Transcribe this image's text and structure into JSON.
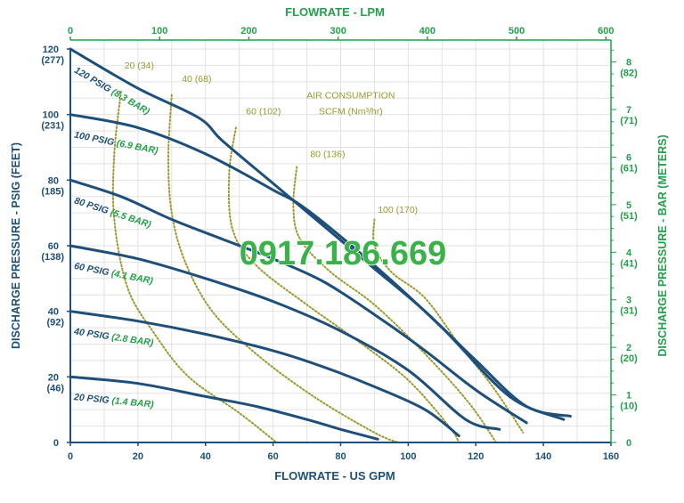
{
  "chart_data": {
    "type": "line",
    "colors": {
      "navy": "#1d4f7a",
      "green": "#22a04a",
      "olive": "#9a9a2c",
      "grid": "#e2e2e2",
      "watermark": "#3bb249"
    },
    "grid": true,
    "x_bottom": {
      "label": "FLOWRATE - US GPM",
      "range": [
        0,
        160
      ],
      "ticks": [
        0,
        20,
        40,
        60,
        80,
        100,
        120,
        140,
        160
      ],
      "tick_labels": [
        "0",
        "20",
        "40",
        "60",
        "80",
        "100",
        "120",
        "140",
        "160"
      ]
    },
    "x_top": {
      "label": "FLOWRATE - LPM",
      "ticks": [
        0,
        100,
        200,
        300,
        400,
        500,
        600
      ],
      "tick_labels": [
        "0",
        "100",
        "200",
        "300",
        "400",
        "500",
        "600"
      ]
    },
    "y_left": {
      "label": "DISCHARGE PRESSURE - PSIG (FEET)",
      "range": [
        0,
        120
      ],
      "ticks": [
        {
          "value": 120,
          "label": "120",
          "sub": "(277)"
        },
        {
          "value": 100,
          "label": "100",
          "sub": "(231)"
        },
        {
          "value": 80,
          "label": "80",
          "sub": "(185)"
        },
        {
          "value": 60,
          "label": "60",
          "sub": "(138)"
        },
        {
          "value": 40,
          "label": "40",
          "sub": "(92)"
        },
        {
          "value": 20,
          "label": "20",
          "sub": "(46)"
        },
        {
          "value": 0,
          "label": "0",
          "sub": ""
        }
      ]
    },
    "y_right": {
      "label": "DISCHARGE PRESSURE - BAR (METERS)",
      "ticks": [
        {
          "value": 8,
          "label": "8",
          "sub": "(82)"
        },
        {
          "value": 7,
          "label": "7",
          "sub": "(71)"
        },
        {
          "value": 6,
          "label": "6",
          "sub": "(61)"
        },
        {
          "value": 5,
          "label": "5",
          "sub": "(51)"
        },
        {
          "value": 4,
          "label": "4",
          "sub": "(41)"
        },
        {
          "value": 3,
          "label": "3",
          "sub": "(31)"
        },
        {
          "value": 2,
          "label": "2",
          "sub": "(20)"
        },
        {
          "value": 1,
          "label": "1",
          "sub": "(10)"
        },
        {
          "value": 0,
          "label": "0",
          "sub": ""
        }
      ]
    },
    "series": [
      {
        "name": "120 PSIG (8.3 BAR)",
        "label_at": [
          1,
          113
        ],
        "points": [
          [
            0,
            120
          ],
          [
            20,
            108
          ],
          [
            38,
            99
          ],
          [
            45,
            92
          ],
          [
            60,
            79
          ],
          [
            75,
            66
          ],
          [
            90,
            53
          ],
          [
            105,
            40
          ],
          [
            120,
            25
          ],
          [
            135,
            11
          ],
          [
            148,
            8
          ]
        ]
      },
      {
        "name": "100 PSIG (6.9 BAR)",
        "label_at": [
          1,
          93
        ],
        "points": [
          [
            0,
            100
          ],
          [
            20,
            96
          ],
          [
            40,
            88
          ],
          [
            60,
            77
          ],
          [
            70,
            71
          ],
          [
            90,
            54
          ],
          [
            110,
            35
          ],
          [
            130,
            14
          ],
          [
            146,
            7
          ]
        ]
      },
      {
        "name": "80 PSIG (5.5 BAR)",
        "label_at": [
          1,
          73
        ],
        "points": [
          [
            0,
            80
          ],
          [
            15,
            75
          ],
          [
            30,
            68
          ],
          [
            45,
            62
          ],
          [
            60,
            56
          ],
          [
            75,
            49
          ],
          [
            90,
            39
          ],
          [
            105,
            28
          ],
          [
            120,
            16
          ],
          [
            135,
            6
          ]
        ]
      },
      {
        "name": "60 PSIG (4.1 BAR)",
        "label_at": [
          1,
          53
        ],
        "points": [
          [
            0,
            60
          ],
          [
            20,
            56
          ],
          [
            40,
            50
          ],
          [
            60,
            43
          ],
          [
            80,
            34
          ],
          [
            100,
            22
          ],
          [
            117,
            7
          ],
          [
            127,
            4
          ]
        ]
      },
      {
        "name": "40 PSIG (2.8 BAR)",
        "label_at": [
          1,
          33
        ],
        "points": [
          [
            0,
            40
          ],
          [
            20,
            37
          ],
          [
            40,
            33
          ],
          [
            60,
            28
          ],
          [
            75,
            23
          ],
          [
            90,
            17
          ],
          [
            105,
            10
          ],
          [
            115,
            2
          ]
        ]
      },
      {
        "name": "20 PSIG (1.4 BAR)",
        "label_at": [
          1,
          13
        ],
        "points": [
          [
            0,
            20
          ],
          [
            20,
            18
          ],
          [
            40,
            14
          ],
          [
            55,
            11
          ],
          [
            70,
            7
          ],
          [
            80,
            4
          ],
          [
            91,
            1
          ]
        ]
      }
    ],
    "air_consumption": {
      "title": "AIR CONSUMPTION",
      "subtitle": "SCFM (Nm³/hr)",
      "title_at": [
        83,
        105
      ],
      "subtitle_at": [
        83,
        100
      ],
      "lines": [
        {
          "label": "20 (34)",
          "label_at": [
            16,
            114
          ],
          "points": [
            [
              15,
              107
            ],
            [
              13,
              88
            ],
            [
              13,
              68
            ],
            [
              17,
              47
            ],
            [
              25,
              33
            ],
            [
              35,
              20
            ],
            [
              50,
              9
            ],
            [
              61,
              0
            ]
          ]
        },
        {
          "label": "40 (68)",
          "label_at": [
            33,
            110
          ],
          "points": [
            [
              30,
              106
            ],
            [
              29,
              87
            ],
            [
              30,
              70
            ],
            [
              34,
              55
            ],
            [
              42,
              40
            ],
            [
              55,
              27
            ],
            [
              72,
              14
            ],
            [
              90,
              3
            ],
            [
              97,
              0
            ]
          ]
        },
        {
          "label": "60 (102)",
          "label_at": [
            52,
            100
          ],
          "points": [
            [
              49,
              96
            ],
            [
              47,
              82
            ],
            [
              48,
              65
            ],
            [
              55,
              54
            ],
            [
              70,
              42
            ],
            [
              85,
              31
            ],
            [
              100,
              19
            ],
            [
              112,
              5
            ],
            [
              115,
              0
            ]
          ]
        },
        {
          "label": "80 (136)",
          "label_at": [
            71,
            87
          ],
          "points": [
            [
              67,
              84
            ],
            [
              66,
              72
            ],
            [
              68,
              62
            ],
            [
              77,
              52
            ],
            [
              90,
              42
            ],
            [
              105,
              27
            ],
            [
              118,
              12
            ],
            [
              126,
              0
            ]
          ]
        },
        {
          "label": "100 (170)",
          "label_at": [
            91,
            70
          ],
          "points": [
            [
              90,
              68
            ],
            [
              90,
              60
            ],
            [
              95,
              52
            ],
            [
              105,
              44
            ],
            [
              115,
              30
            ],
            [
              125,
              17
            ],
            [
              134,
              3
            ]
          ]
        }
      ]
    },
    "watermark": "0917.186.669"
  }
}
